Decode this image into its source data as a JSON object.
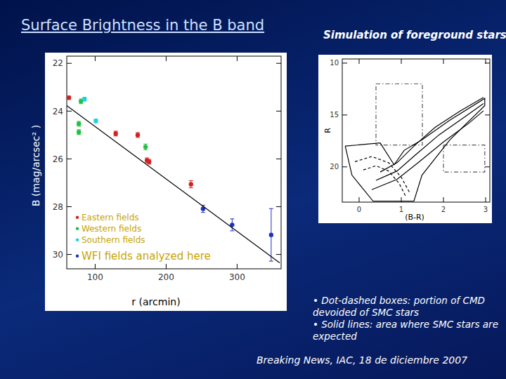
{
  "chart_data": [
    {
      "type": "scatter",
      "title": "Surface Brightness in the B band",
      "x_label": "r (arcmin)",
      "y_label": "B (mag/arcsec² )",
      "xlim": [
        60,
        362
      ],
      "xticks": [
        100,
        200,
        300
      ],
      "ylim": [
        30.6,
        21.7
      ],
      "yticks": [
        22,
        24,
        26,
        28,
        30
      ],
      "legend": "lower left",
      "series": [
        {
          "name": "Eastern fields",
          "color": "#d42020",
          "marker": "circle",
          "x": [
            63,
            129,
            160,
            173,
            176,
            235
          ],
          "values": [
            23.44,
            24.94,
            25.0,
            26.06,
            26.12,
            27.06
          ],
          "errors": [
            0.07,
            0.1,
            0.1,
            0.1,
            0.1,
            0.15
          ]
        },
        {
          "name": "Western fields",
          "color": "#20c040",
          "marker": "circle",
          "x": [
            77,
            77,
            80,
            171
          ],
          "values": [
            24.53,
            24.88,
            23.59,
            25.5
          ],
          "errors": [
            0.1,
            0.1,
            0.1,
            0.12
          ]
        },
        {
          "name": "Southern fields",
          "color": "#20d0e0",
          "marker": "circle",
          "x": [
            85,
            101
          ],
          "values": [
            23.5,
            24.41
          ],
          "errors": [
            0.08,
            0.08
          ]
        },
        {
          "name": "WFI fields analyzed here",
          "color": "#2030c0",
          "marker": "circle",
          "x": [
            252,
            293,
            348
          ],
          "values": [
            28.09,
            28.76,
            29.18
          ],
          "errors": [
            0.15,
            0.25,
            1.1
          ]
        },
        {
          "type": "line",
          "color": "#000000",
          "line_style": "solid",
          "x": [
            60,
            360
          ],
          "values": [
            23.77,
            30.35
          ]
        }
      ]
    },
    {
      "type": "line",
      "title": "Simulation of foreground stars",
      "x_label": "(B-R)",
      "y_label": "R",
      "xlim": [
        -0.4,
        3.1
      ],
      "xticks": [
        0,
        1,
        2,
        3
      ],
      "ylim": [
        23.4,
        9.6
      ],
      "yticks": [
        10,
        15,
        20
      ],
      "annotations": [
        "• Dot-dashed boxes: portion of CMD devoided of SMC stars",
        "• Solid lines: area where SMC stars are expected"
      ],
      "series": [
        {
          "color": "#555555",
          "line_style": "dashdot",
          "x": [
            0.4,
            1.5,
            1.5,
            0.4,
            0.4
          ],
          "values": [
            12,
            12,
            17.9,
            17.9,
            12
          ]
        },
        {
          "color": "#555555",
          "line_style": "dashdot",
          "x": [
            2.0,
            2.98,
            2.98,
            2.0,
            2.0
          ],
          "values": [
            17.9,
            17.9,
            20.5,
            20.5,
            17.9
          ]
        },
        {
          "color": "#000000",
          "line_style": "solid",
          "x": [
            -0.33,
            0.5,
            0.83,
            1.07,
            1.49,
            2.15,
            2.98,
            2.98,
            2.15,
            1.49,
            1.3,
            0.33,
            -0.17,
            -0.33
          ],
          "values": [
            18.0,
            17.7,
            19.8,
            18.4,
            17.4,
            15.5,
            13.4,
            14.1,
            17.4,
            20.8,
            23.3,
            23.3,
            20.8,
            18.0
          ]
        },
        {
          "color": "#000000",
          "line_style": "solid",
          "x": [
            0.5,
            0.9,
            1.3,
            1.8,
            2.4,
            2.95
          ],
          "values": [
            20.5,
            19.6,
            18.0,
            16.2,
            14.6,
            13.3
          ]
        },
        {
          "color": "#000000",
          "line_style": "solid",
          "x": [
            0.4,
            0.9,
            1.35,
            1.9,
            2.5,
            2.95
          ],
          "values": [
            21.3,
            20.4,
            18.8,
            16.9,
            15.2,
            13.9
          ]
        },
        {
          "color": "#000000",
          "line_style": "solid",
          "x": [
            0.3,
            0.9,
            1.4,
            2.0,
            2.6,
            2.95
          ],
          "values": [
            22.2,
            21.2,
            19.6,
            17.6,
            15.8,
            14.6
          ]
        },
        {
          "color": "#000000",
          "line_style": "dashed",
          "x": [
            -0.1,
            0.3,
            0.7,
            1.0,
            1.2
          ],
          "values": [
            19.5,
            19.0,
            19.6,
            21.0,
            22.5
          ]
        },
        {
          "color": "#000000",
          "line_style": "dashed",
          "x": [
            0.1,
            0.4,
            0.7,
            0.95,
            1.1
          ],
          "values": [
            20.3,
            19.9,
            20.4,
            21.6,
            22.8
          ]
        }
      ]
    }
  ],
  "footer": "Breaking News, IAC, 18 de diciembre 2007"
}
